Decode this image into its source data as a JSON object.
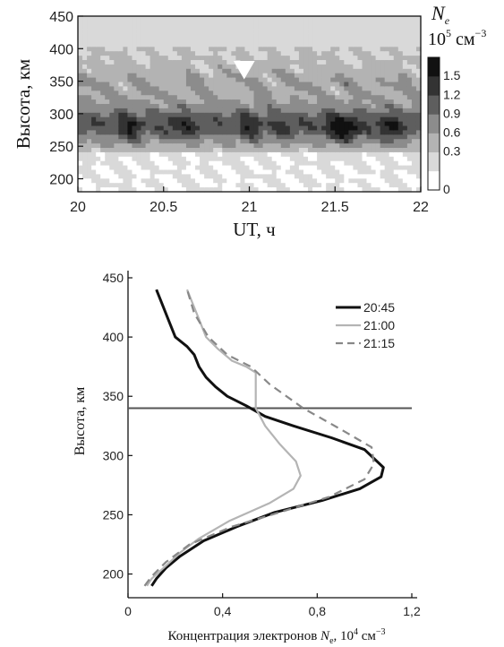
{
  "chart_data": [
    {
      "type": "heatmap",
      "title": "",
      "xlabel": "UT, ч",
      "ylabel": "Высота, км",
      "x_ticks": [
        "20",
        "20.5",
        "21",
        "21.5",
        "22"
      ],
      "y_ticks": [
        "200",
        "250",
        "300",
        "350",
        "400",
        "450"
      ],
      "xlim": [
        20,
        22
      ],
      "ylim": [
        180,
        450
      ],
      "colorbar": {
        "title_symbol": "N",
        "title_sub": "e",
        "units_prefix": "10",
        "units_exp": "5",
        "units_suffix": " см",
        "units_suffix_exp": "−3",
        "tick_labels": [
          "1.5",
          "1.2",
          "0.9",
          "0.6",
          "0.3",
          "0"
        ],
        "levels": [
          0,
          0.3,
          0.6,
          0.9,
          1.2,
          1.5
        ],
        "colors": [
          "#ffffff",
          "#d9d9d9",
          "#b3b3b3",
          "#8c8c8c",
          "#5e5e5e",
          "#333333",
          "#111111"
        ]
      },
      "marker": {
        "x": 20.97,
        "y": 368,
        "shape": "triangle-down",
        "color": "#ffffff"
      },
      "grid": false
    },
    {
      "type": "line",
      "title": "",
      "xlabel_main": "Концентрация электронов ",
      "xlabel_symbol": "N",
      "xlabel_sub": "e",
      "xlabel_units": ", 10",
      "xlabel_units_exp": "4",
      "xlabel_units_suffix": " см",
      "xlabel_units_suffix_exp": "−3",
      "ylabel": "Высота, км",
      "x_ticks": [
        "0",
        "0,4",
        "0,8",
        "1,2"
      ],
      "y_ticks": [
        "200",
        "250",
        "300",
        "350",
        "400",
        "450"
      ],
      "xlim": [
        0,
        1.2
      ],
      "ylim": [
        180,
        450
      ],
      "hline": 340,
      "legend_position": "top-right",
      "series": [
        {
          "name": "20:45",
          "color": "#111111",
          "style": "solid",
          "points": [
            [
              0.1,
              190
            ],
            [
              0.12,
              196
            ],
            [
              0.16,
              205
            ],
            [
              0.22,
              215
            ],
            [
              0.32,
              228
            ],
            [
              0.46,
              240
            ],
            [
              0.62,
              252
            ],
            [
              0.82,
              262
            ],
            [
              0.98,
              272
            ],
            [
              1.07,
              282
            ],
            [
              1.08,
              290
            ],
            [
              1.0,
              305
            ],
            [
              0.86,
              315
            ],
            [
              0.7,
              325
            ],
            [
              0.58,
              333
            ],
            [
              0.5,
              342
            ],
            [
              0.42,
              350
            ],
            [
              0.37,
              358
            ],
            [
              0.33,
              366
            ],
            [
              0.3,
              375
            ],
            [
              0.28,
              385
            ],
            [
              0.25,
              392
            ],
            [
              0.2,
              400
            ],
            [
              0.17,
              415
            ],
            [
              0.14,
              430
            ],
            [
              0.12,
              440
            ]
          ]
        },
        {
          "name": "21:00",
          "color": "#b4b4b4",
          "style": "solid",
          "points": [
            [
              0.08,
              190
            ],
            [
              0.1,
              196
            ],
            [
              0.15,
              205
            ],
            [
              0.22,
              218
            ],
            [
              0.3,
              230
            ],
            [
              0.43,
              245
            ],
            [
              0.6,
              260
            ],
            [
              0.7,
              272
            ],
            [
              0.73,
              283
            ],
            [
              0.71,
              295
            ],
            [
              0.64,
              310
            ],
            [
              0.58,
              325
            ],
            [
              0.54,
              340
            ],
            [
              0.54,
              355
            ],
            [
              0.54,
              370
            ],
            [
              0.5,
              375
            ],
            [
              0.44,
              380
            ],
            [
              0.38,
              390
            ],
            [
              0.33,
              400
            ],
            [
              0.3,
              415
            ],
            [
              0.27,
              430
            ],
            [
              0.25,
              440
            ]
          ]
        },
        {
          "name": "21:15",
          "color": "#888888",
          "style": "dashed",
          "points": [
            [
              0.07,
              190
            ],
            [
              0.1,
              198
            ],
            [
              0.16,
              210
            ],
            [
              0.26,
              225
            ],
            [
              0.44,
              240
            ],
            [
              0.64,
              252
            ],
            [
              0.85,
              265
            ],
            [
              1.0,
              280
            ],
            [
              1.04,
              293
            ],
            [
              1.03,
              307
            ],
            [
              0.9,
              322
            ],
            [
              0.74,
              340
            ],
            [
              0.6,
              360
            ],
            [
              0.52,
              375
            ],
            [
              0.42,
              385
            ],
            [
              0.34,
              400
            ],
            [
              0.28,
              420
            ],
            [
              0.25,
              440
            ]
          ]
        }
      ],
      "grid": false
    }
  ]
}
